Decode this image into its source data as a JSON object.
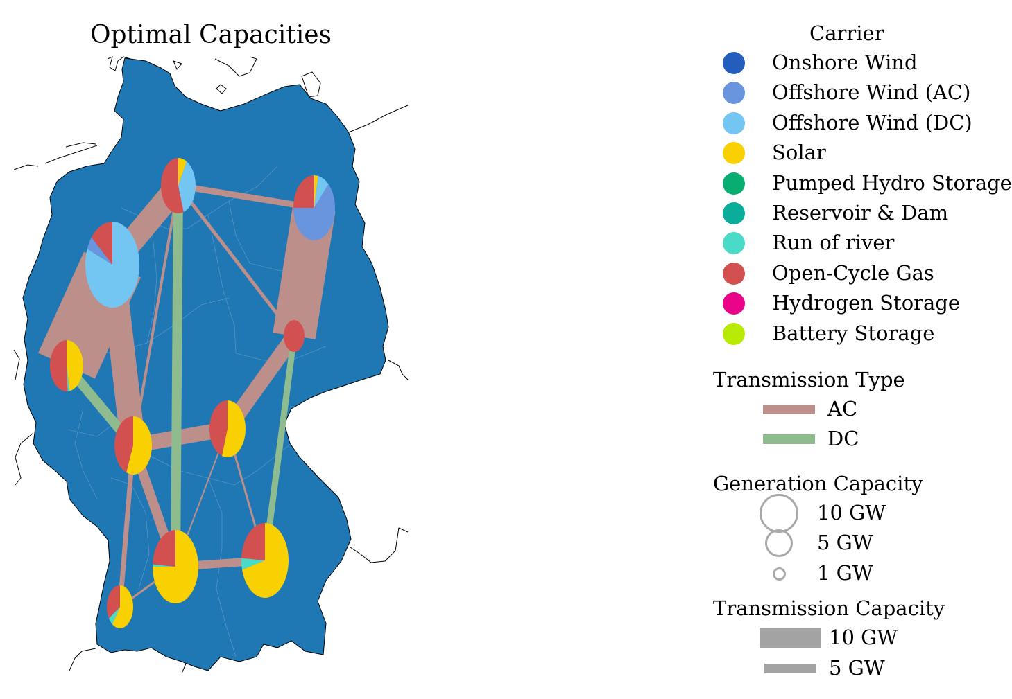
{
  "title": "Optimal Capacities",
  "colors": {
    "land": "#1f77b4",
    "ac_line": "#bc8f8a",
    "dc_line": "#8fbc8f",
    "neutral_legend": "#a3a3a3"
  },
  "legend": {
    "carrier_title": "Carrier",
    "carriers": [
      {
        "label": "Onshore Wind",
        "color": "#235ebc"
      },
      {
        "label": "Offshore Wind (AC)",
        "color": "#6895dd"
      },
      {
        "label": "Offshore Wind (DC)",
        "color": "#74c6f2"
      },
      {
        "label": "Solar",
        "color": "#f9d002"
      },
      {
        "label": "Pumped Hydro Storage",
        "color": "#08ad72"
      },
      {
        "label": "Reservoir & Dam",
        "color": "#0aad99"
      },
      {
        "label": "Run of river",
        "color": "#4adbc8"
      },
      {
        "label": "Open-Cycle Gas",
        "color": "#d35050"
      },
      {
        "label": "Hydrogen Storage",
        "color": "#ea048a"
      },
      {
        "label": "Battery Storage",
        "color": "#b8ea04"
      }
    ],
    "transmission_type_title": "Transmission Type",
    "transmission_types": [
      {
        "label": "AC",
        "color": "#bc8f8a"
      },
      {
        "label": "DC",
        "color": "#8fbc8f"
      }
    ],
    "generation_title": "Generation Capacity",
    "generation_sizes": [
      {
        "label": "10 GW",
        "value": 10
      },
      {
        "label": "5 GW",
        "value": 5
      },
      {
        "label": "1 GW",
        "value": 1
      }
    ],
    "transmission_capacity_title": "Transmission Capacity",
    "transmission_capacities": [
      {
        "label": "10 GW",
        "value": 10
      },
      {
        "label": "5 GW",
        "value": 5
      }
    ]
  }
}
